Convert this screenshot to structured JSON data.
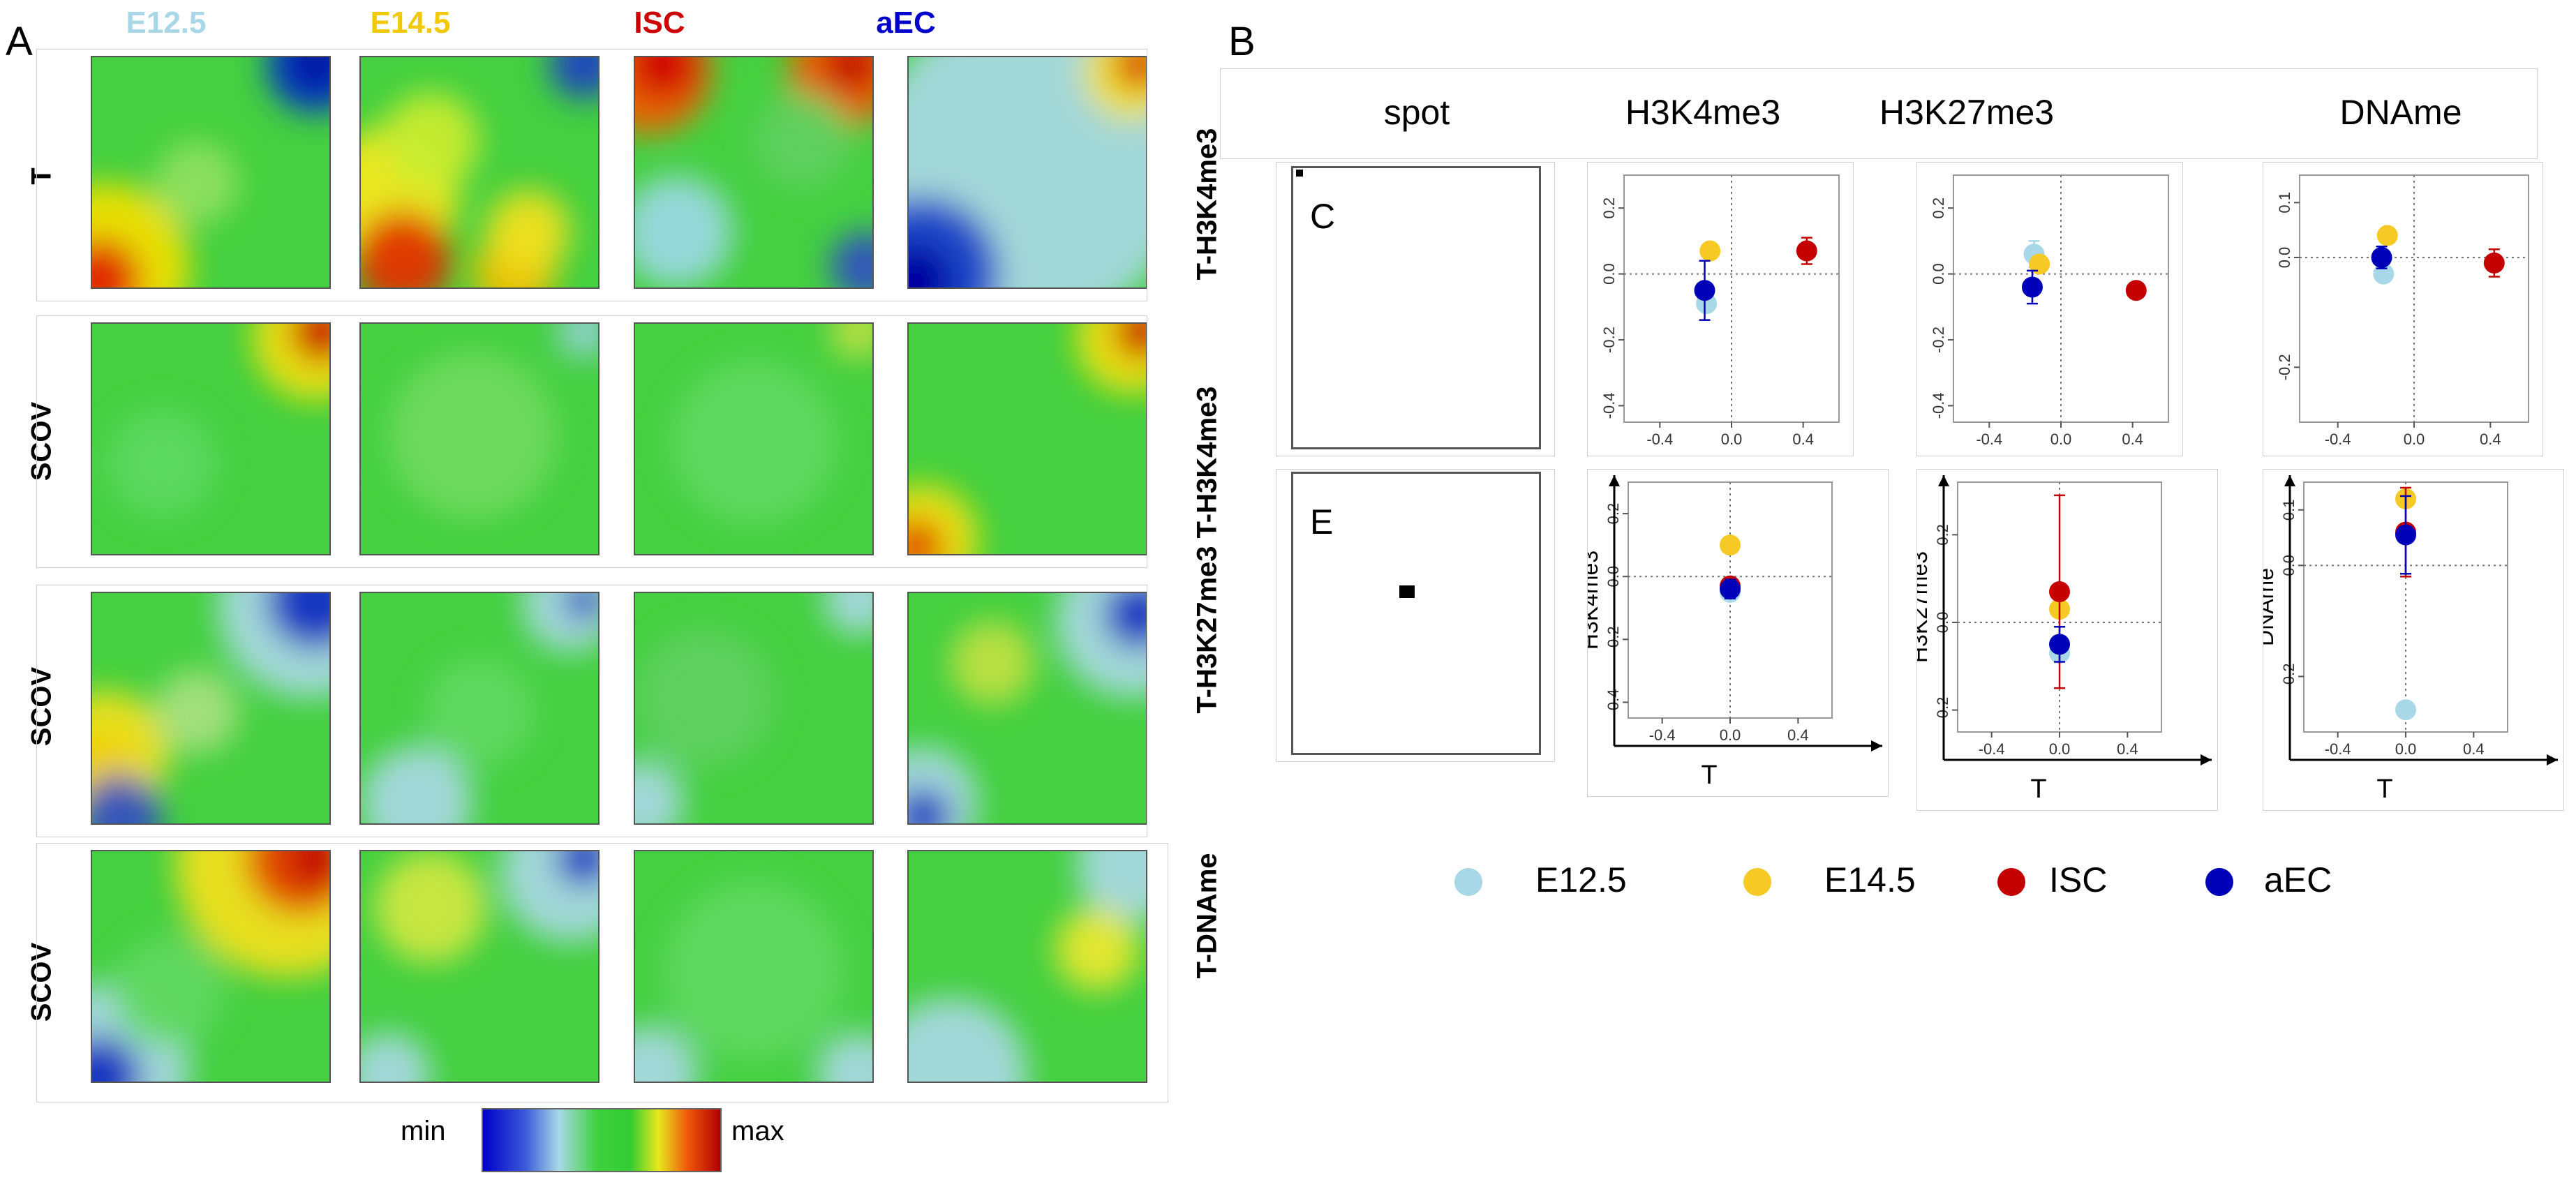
{
  "panel_a": {
    "letter": "A",
    "columns": [
      {
        "label": "E12.5",
        "color": "#a8d8e8"
      },
      {
        "label": "E14.5",
        "color": "#f2c800"
      },
      {
        "label": "ISC",
        "color": "#cc0000"
      },
      {
        "label": "aEC",
        "color": "#0000cc"
      }
    ],
    "rows": [
      "T",
      "SCOV",
      "SCOV",
      "SCOV"
    ],
    "colorbar": {
      "min_label": "min",
      "max_label": "max"
    }
  },
  "panel_b": {
    "letter": "B",
    "headers": [
      "spot",
      "H3K4me3",
      "H3K27me3",
      "DNAme"
    ],
    "row_labels": [
      "T-H3K4me3",
      "T-H3K4me3",
      "T-H3K27me3",
      "T-DNAme"
    ],
    "spot_letters": [
      "C",
      "E"
    ]
  },
  "legend": [
    {
      "label": "E12.5",
      "color": "#a8d8e8"
    },
    {
      "label": "E14.5",
      "color": "#f7c925"
    },
    {
      "label": "ISC",
      "color": "#c40000"
    },
    {
      "label": "aEC",
      "color": "#0000b8"
    }
  ],
  "chart_data": [
    {
      "type": "scatter",
      "title": "H3K4me3 (C)",
      "xlabel": "",
      "ylabel": "",
      "xticks": [
        "-0.4",
        "0.0",
        "0.4"
      ],
      "yticks": [
        "-0.4",
        "-0.2",
        "0.0",
        "0.2"
      ],
      "xlim": [
        -0.6,
        0.6
      ],
      "ylim": [
        -0.45,
        0.3
      ],
      "series": [
        {
          "name": "E12.5",
          "x": -0.14,
          "y": -0.09,
          "err": 0
        },
        {
          "name": "E14.5",
          "x": -0.12,
          "y": 0.07,
          "err": 0
        },
        {
          "name": "ISC",
          "x": 0.42,
          "y": 0.07,
          "err": 0.04
        },
        {
          "name": "aEC",
          "x": -0.15,
          "y": -0.05,
          "err": 0.09
        }
      ]
    },
    {
      "type": "scatter",
      "title": "H3K27me3 (C)",
      "xlabel": "",
      "ylabel": "",
      "xticks": [
        "-0.4",
        "0.0",
        "0.4"
      ],
      "yticks": [
        "-0.4",
        "-0.2",
        "0.0",
        "0.2"
      ],
      "xlim": [
        -0.6,
        0.6
      ],
      "ylim": [
        -0.45,
        0.3
      ],
      "series": [
        {
          "name": "E12.5",
          "x": -0.15,
          "y": 0.06,
          "err": 0.04
        },
        {
          "name": "E14.5",
          "x": -0.12,
          "y": 0.03,
          "err": 0
        },
        {
          "name": "ISC",
          "x": 0.42,
          "y": -0.05,
          "err": 0.02
        },
        {
          "name": "aEC",
          "x": -0.16,
          "y": -0.04,
          "err": 0.05
        }
      ]
    },
    {
      "type": "scatter",
      "title": "DNAme (C)",
      "xlabel": "",
      "ylabel": "",
      "xticks": [
        "-0.4",
        "0.0",
        "0.4"
      ],
      "yticks": [
        "-0.2",
        "0.0",
        "0.1"
      ],
      "xlim": [
        -0.6,
        0.6
      ],
      "ylim": [
        -0.3,
        0.15
      ],
      "series": [
        {
          "name": "E12.5",
          "x": -0.16,
          "y": -0.03,
          "err": 0
        },
        {
          "name": "E14.5",
          "x": -0.14,
          "y": 0.04,
          "err": 0
        },
        {
          "name": "ISC",
          "x": 0.42,
          "y": -0.01,
          "err": 0.025
        },
        {
          "name": "aEC",
          "x": -0.17,
          "y": 0.0,
          "err": 0.02
        }
      ]
    },
    {
      "type": "scatter",
      "title": "H3K4me3 (E)",
      "xlabel": "T",
      "ylabel": "H3K4me3",
      "xticks": [
        "-0.4",
        "0.0",
        "0.4"
      ],
      "yticks": [
        "-0.4",
        "-0.2",
        "0.0",
        "0.2"
      ],
      "xlim": [
        -0.6,
        0.6
      ],
      "ylim": [
        -0.45,
        0.3
      ],
      "series": [
        {
          "name": "E12.5",
          "x": 0.0,
          "y": -0.05,
          "err": 0
        },
        {
          "name": "E14.5",
          "x": 0.0,
          "y": 0.1,
          "err": 0
        },
        {
          "name": "ISC",
          "x": 0.0,
          "y": -0.03,
          "err": 0.02
        },
        {
          "name": "aEC",
          "x": 0.0,
          "y": -0.04,
          "err": 0.03
        }
      ]
    },
    {
      "type": "scatter",
      "title": "H3K27me3 (E)",
      "xlabel": "T",
      "ylabel": "H3K27me3",
      "xticks": [
        "-0.4",
        "0.0",
        "0.4"
      ],
      "yticks": [
        "-0.2",
        "0.0",
        "0.2"
      ],
      "xlim": [
        -0.6,
        0.6
      ],
      "ylim": [
        -0.25,
        0.32
      ],
      "series": [
        {
          "name": "E12.5",
          "x": 0.0,
          "y": -0.07,
          "err": 0
        },
        {
          "name": "E14.5",
          "x": 0.0,
          "y": 0.03,
          "err": 0
        },
        {
          "name": "ISC",
          "x": 0.0,
          "y": 0.07,
          "err": 0.22
        },
        {
          "name": "aEC",
          "x": 0.0,
          "y": -0.05,
          "err": 0.04
        }
      ]
    },
    {
      "type": "scatter",
      "title": "DNAme (E)",
      "xlabel": "T",
      "ylabel": "DNAme",
      "xticks": [
        "-0.4",
        "0.0",
        "0.4"
      ],
      "yticks": [
        "-0.2",
        "0.0",
        "0.1"
      ],
      "xlim": [
        -0.6,
        0.6
      ],
      "ylim": [
        -0.3,
        0.15
      ],
      "series": [
        {
          "name": "E12.5",
          "x": 0.0,
          "y": -0.26,
          "err": 0
        },
        {
          "name": "E14.5",
          "x": 0.0,
          "y": 0.12,
          "err": 0
        },
        {
          "name": "ISC",
          "x": 0.0,
          "y": 0.06,
          "err": 0.08
        },
        {
          "name": "aEC",
          "x": 0.0,
          "y": 0.055,
          "err": 0.07
        }
      ]
    }
  ]
}
